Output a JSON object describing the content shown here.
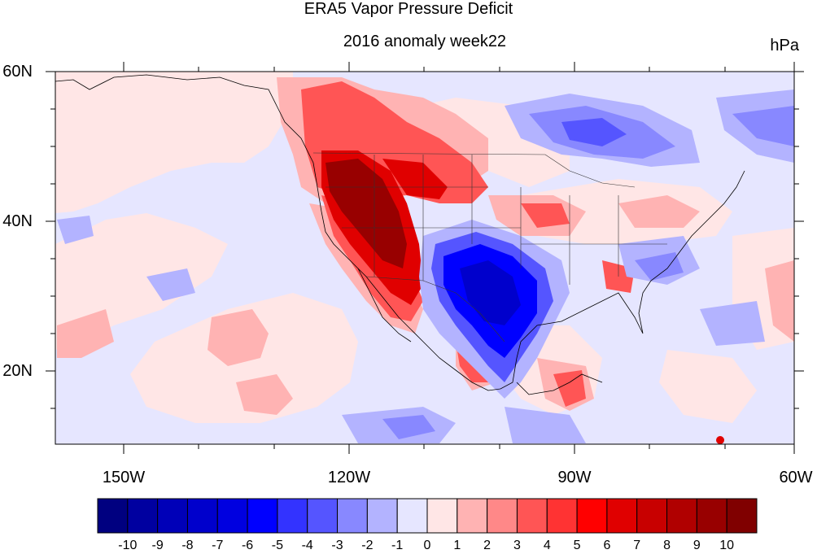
{
  "title": "ERA5 Vapor Pressure Deficit",
  "subtitle": "2016 anomaly week22",
  "units": "hPa",
  "latitude_labels": [
    "60N",
    "40N",
    "20N"
  ],
  "longitude_labels": [
    "150W",
    "120W",
    "90W",
    "60W"
  ],
  "colorbar": {
    "tick_labels": [
      "-10",
      "-9",
      "-8",
      "-7",
      "-6",
      "-5",
      "-4",
      "-3",
      "-2",
      "-1",
      "0",
      "1",
      "2",
      "3",
      "4",
      "5",
      "6",
      "7",
      "8",
      "9",
      "10"
    ],
    "colors": [
      "#000080",
      "#0000a0",
      "#0000b8",
      "#0000cc",
      "#0000e0",
      "#0000ff",
      "#3333ff",
      "#5555ff",
      "#8888ff",
      "#b3b3ff",
      "#e6e6ff",
      "#ffe6e6",
      "#ffb3b3",
      "#ff8888",
      "#ff5555",
      "#ff3333",
      "#ff0000",
      "#e00000",
      "#c80000",
      "#b00000",
      "#980000",
      "#800000"
    ]
  },
  "map": {
    "region": "North America and eastern Pacific",
    "lon_range": [
      -160,
      -60
    ],
    "lat_range": [
      10,
      60
    ],
    "anomaly_features": [
      {
        "area": "US West Coast / Great Basin",
        "sign": "positive",
        "max": 10
      },
      {
        "area": "Texas / southern Plains",
        "sign": "negative",
        "min": -7
      },
      {
        "area": "south-central Canada",
        "sign": "negative",
        "min": -3
      },
      {
        "area": "Mexico west coast",
        "sign": "positive",
        "max": 5
      },
      {
        "area": "Yucatan region",
        "sign": "positive",
        "max": 6
      }
    ]
  }
}
